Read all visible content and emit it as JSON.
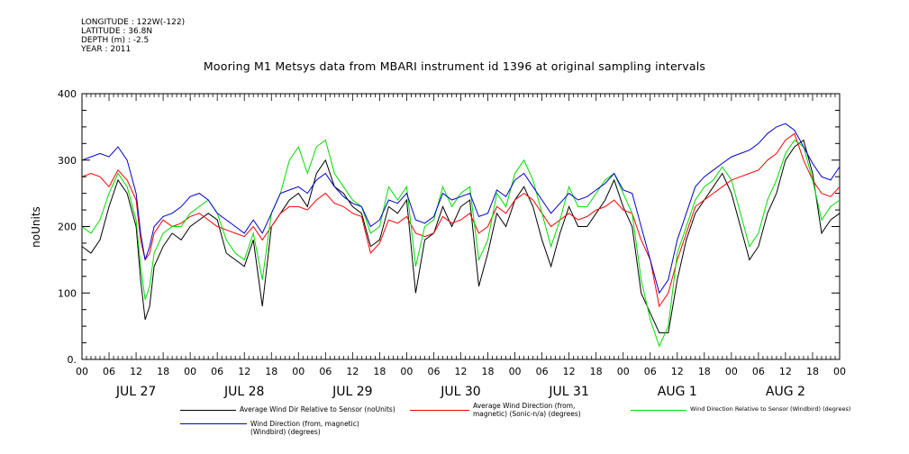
{
  "meta": {
    "longitude": "LONGITUDE : 122W(-122)",
    "latitude": "LATITUDE : 36.8N",
    "depth": "DEPTH (m) : -2.5",
    "year": "YEAR : 2011"
  },
  "colors": {
    "wind_dir_rel_sonic": "#000000",
    "wind_dir_sonic": "#ff0000",
    "wind_dir_rel_windbird": "#00dd00",
    "wind_dir_windbird": "#0000cc"
  },
  "chart_data": {
    "type": "line",
    "title": "Mooring M1 Metsys data from MBARI instrument id 1396 at original sampling intervals",
    "ylabel": "noUnits",
    "ylim": [
      0,
      400
    ],
    "yticks": [
      "0.",
      "100",
      "200",
      "300",
      "400"
    ],
    "xlim_hours": [
      0,
      168
    ],
    "xtick_labels": [
      "00",
      "06",
      "12",
      "18",
      "00",
      "06",
      "12",
      "18",
      "00",
      "06",
      "12",
      "18",
      "00",
      "06",
      "12",
      "18",
      "00",
      "06",
      "12",
      "18",
      "00",
      "06",
      "12",
      "18",
      "00",
      "06",
      "12",
      "18",
      "00"
    ],
    "day_labels": [
      "JUL 27",
      "JUL 28",
      "JUL 29",
      "JUL 30",
      "JUL 31",
      "AUG  1",
      "AUG  2"
    ],
    "grid": false,
    "legend_position": "bottom",
    "series": [
      {
        "name": "Average Wind Dir Relative to Sensor (noUnits)",
        "color": "#000000",
        "x": [
          0,
          2,
          4,
          6,
          8,
          10,
          12,
          13,
          14,
          15,
          16,
          18,
          20,
          22,
          24,
          26,
          28,
          30,
          32,
          34,
          36,
          38,
          40,
          42,
          44,
          46,
          48,
          50,
          52,
          54,
          56,
          58,
          60,
          62,
          64,
          66,
          68,
          70,
          72,
          74,
          76,
          78,
          80,
          82,
          84,
          86,
          88,
          90,
          92,
          94,
          96,
          98,
          100,
          102,
          104,
          106,
          108,
          110,
          112,
          114,
          116,
          118,
          120,
          122,
          124,
          126,
          128,
          130,
          132,
          134,
          136,
          138,
          140,
          142,
          144,
          146,
          148,
          150,
          152,
          154,
          156,
          158,
          160,
          162,
          164,
          166,
          168
        ],
        "values": [
          170,
          160,
          180,
          230,
          270,
          250,
          200,
          120,
          60,
          80,
          140,
          170,
          190,
          180,
          200,
          210,
          220,
          210,
          160,
          150,
          140,
          180,
          80,
          200,
          220,
          240,
          250,
          230,
          280,
          300,
          260,
          250,
          230,
          220,
          170,
          180,
          230,
          220,
          240,
          100,
          180,
          190,
          230,
          200,
          230,
          240,
          110,
          160,
          220,
          200,
          240,
          260,
          230,
          180,
          140,
          190,
          230,
          200,
          200,
          220,
          240,
          270,
          230,
          200,
          100,
          70,
          40,
          40,
          120,
          180,
          220,
          240,
          260,
          280,
          250,
          200,
          150,
          170,
          220,
          250,
          300,
          320,
          330,
          280,
          190,
          210,
          220
        ]
      },
      {
        "name": "Average Wind Direction (from, magnetic) (Sonic-n/a) (degrees)",
        "color": "#ff0000",
        "x": [
          0,
          2,
          4,
          6,
          8,
          10,
          12,
          13,
          14,
          15,
          16,
          18,
          20,
          22,
          24,
          26,
          28,
          30,
          32,
          34,
          36,
          38,
          40,
          42,
          44,
          46,
          48,
          50,
          52,
          54,
          56,
          58,
          60,
          62,
          64,
          66,
          68,
          70,
          72,
          74,
          76,
          78,
          80,
          82,
          84,
          86,
          88,
          90,
          92,
          94,
          96,
          98,
          100,
          102,
          104,
          106,
          108,
          110,
          112,
          114,
          116,
          118,
          120,
          122,
          124,
          126,
          128,
          130,
          132,
          134,
          136,
          138,
          140,
          142,
          144,
          146,
          148,
          150,
          152,
          154,
          156,
          158,
          160,
          162,
          164,
          166,
          168
        ],
        "values": [
          275,
          280,
          275,
          260,
          285,
          270,
          240,
          180,
          150,
          160,
          190,
          210,
          200,
          205,
          215,
          220,
          210,
          200,
          195,
          190,
          185,
          200,
          180,
          200,
          220,
          230,
          230,
          225,
          240,
          250,
          235,
          230,
          220,
          215,
          160,
          175,
          210,
          205,
          215,
          190,
          185,
          190,
          215,
          205,
          210,
          220,
          190,
          200,
          230,
          220,
          240,
          250,
          240,
          220,
          200,
          210,
          220,
          210,
          215,
          225,
          230,
          240,
          225,
          220,
          180,
          150,
          80,
          100,
          150,
          190,
          230,
          240,
          250,
          260,
          270,
          275,
          280,
          285,
          300,
          310,
          330,
          340,
          300,
          270,
          250,
          245,
          260
        ]
      },
      {
        "name": "Wind Direction Relative to Sensor (Windbird) (degrees)",
        "color": "#00dd00",
        "x": [
          0,
          2,
          4,
          6,
          8,
          10,
          12,
          13,
          14,
          15,
          16,
          18,
          20,
          22,
          24,
          26,
          28,
          30,
          32,
          34,
          36,
          38,
          40,
          42,
          44,
          46,
          48,
          50,
          52,
          54,
          56,
          58,
          60,
          62,
          64,
          66,
          68,
          70,
          72,
          74,
          76,
          78,
          80,
          82,
          84,
          86,
          88,
          90,
          92,
          94,
          96,
          98,
          100,
          102,
          104,
          106,
          108,
          110,
          112,
          114,
          116,
          118,
          120,
          122,
          124,
          126,
          128,
          130,
          132,
          134,
          136,
          138,
          140,
          142,
          144,
          146,
          148,
          150,
          152,
          154,
          156,
          158,
          160,
          162,
          164,
          166,
          168
        ],
        "values": [
          200,
          190,
          210,
          250,
          280,
          260,
          210,
          140,
          90,
          110,
          160,
          190,
          200,
          200,
          220,
          230,
          240,
          220,
          180,
          160,
          150,
          190,
          120,
          220,
          250,
          300,
          320,
          280,
          320,
          330,
          280,
          260,
          240,
          230,
          190,
          200,
          260,
          240,
          260,
          140,
          200,
          210,
          260,
          230,
          250,
          260,
          150,
          180,
          250,
          230,
          280,
          300,
          270,
          220,
          170,
          210,
          260,
          230,
          230,
          250,
          270,
          280,
          250,
          220,
          120,
          60,
          20,
          50,
          160,
          200,
          240,
          260,
          270,
          290,
          270,
          220,
          170,
          190,
          240,
          270,
          310,
          330,
          320,
          270,
          210,
          230,
          240
        ]
      },
      {
        "name": "Wind Direction (from, magnetic) (Windbird) (degrees)",
        "color": "#0000cc",
        "x": [
          0,
          2,
          4,
          6,
          8,
          10,
          12,
          13,
          14,
          15,
          16,
          18,
          20,
          22,
          24,
          26,
          28,
          30,
          32,
          34,
          36,
          38,
          40,
          42,
          44,
          46,
          48,
          50,
          52,
          54,
          56,
          58,
          60,
          62,
          64,
          66,
          68,
          70,
          72,
          74,
          76,
          78,
          80,
          82,
          84,
          86,
          88,
          90,
          92,
          94,
          96,
          98,
          100,
          102,
          104,
          106,
          108,
          110,
          112,
          114,
          116,
          118,
          120,
          122,
          124,
          126,
          128,
          130,
          132,
          134,
          136,
          138,
          140,
          142,
          144,
          146,
          148,
          150,
          152,
          154,
          156,
          158,
          160,
          162,
          164,
          166,
          168
        ],
        "values": [
          300,
          305,
          310,
          305,
          320,
          300,
          250,
          190,
          150,
          170,
          200,
          215,
          220,
          230,
          245,
          250,
          240,
          220,
          210,
          200,
          190,
          210,
          190,
          220,
          250,
          255,
          260,
          250,
          270,
          280,
          260,
          245,
          235,
          230,
          200,
          210,
          240,
          235,
          250,
          210,
          205,
          215,
          250,
          240,
          245,
          250,
          215,
          220,
          255,
          245,
          270,
          280,
          260,
          240,
          220,
          235,
          250,
          240,
          245,
          255,
          265,
          280,
          255,
          250,
          200,
          150,
          100,
          120,
          180,
          220,
          260,
          275,
          285,
          295,
          305,
          310,
          315,
          325,
          340,
          350,
          355,
          345,
          320,
          295,
          275,
          270,
          290
        ]
      }
    ]
  }
}
